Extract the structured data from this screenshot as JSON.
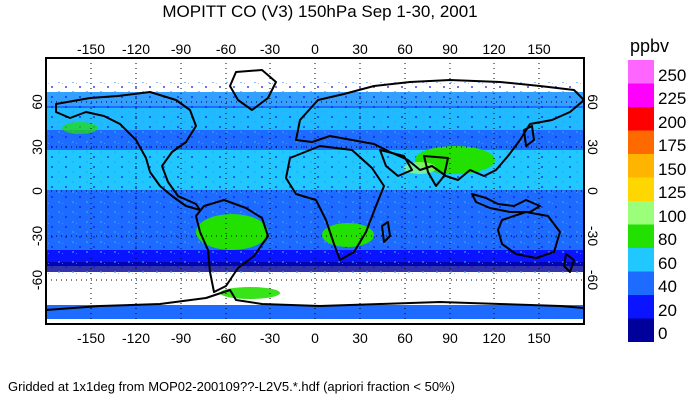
{
  "title": "MOPITT CO (V3) 150hPa Sep 1-30, 2001",
  "footer": "Gridded at 1x1deg from MOP02-200109??-L2V5.*.hdf (apriori fraction < 50%)",
  "map": {
    "lon_ticks": [
      "-150",
      "-120",
      "-90",
      "-60",
      "-30",
      "0",
      "30",
      "60",
      "90",
      "120",
      "150"
    ],
    "lat_ticks": [
      "60",
      "30",
      "0",
      "-30",
      "-60"
    ],
    "lon_range": [
      -180,
      180
    ],
    "lat_range": [
      -90,
      90
    ],
    "background_field_color": "#1e6cff",
    "graticule": "dotted"
  },
  "colorbar": {
    "unit": "ppbv",
    "labels": [
      "250",
      "225",
      "200",
      "175",
      "150",
      "125",
      "100",
      "80",
      "60",
      "40",
      "20",
      "0"
    ],
    "colors": [
      "#ff66ff",
      "#ff00ff",
      "#ff0000",
      "#ff6a00",
      "#ffb400",
      "#ffd700",
      "#9cff7a",
      "#22e000",
      "#20c8ff",
      "#1e6cff",
      "#0a14ff",
      "#00009a"
    ]
  }
}
